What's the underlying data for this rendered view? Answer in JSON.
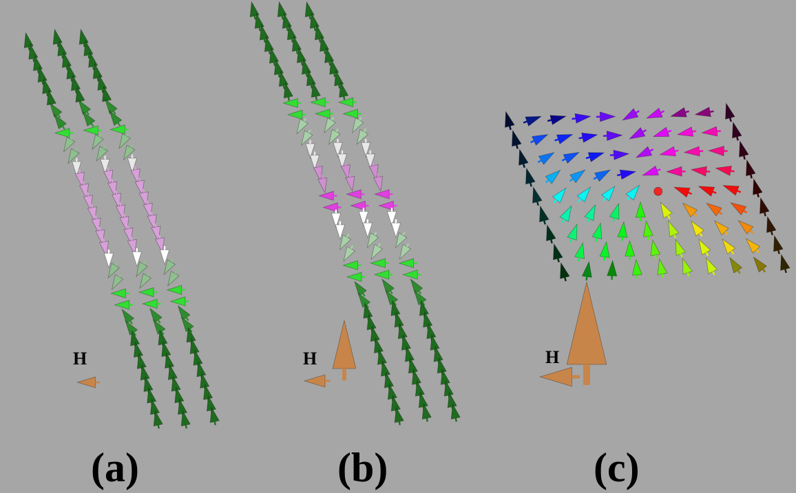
{
  "figure": {
    "background": "#a6a6a6",
    "panels": [
      {
        "id": "a",
        "label": "(a)",
        "field_label": "H",
        "description_colors": [
          "#1f6b1f",
          "#33cc33",
          "#c8e6c8",
          "#ffffff",
          "#d8a0d8"
        ]
      },
      {
        "id": "b",
        "label": "(b)",
        "field_label": "H",
        "description_colors": [
          "#1f6b1f",
          "#33cc33",
          "#c8e6c8",
          "#ffffff",
          "#e060e0"
        ]
      },
      {
        "id": "c",
        "label": "(c)",
        "field_label": "H",
        "description_colors": [
          "#000000",
          "#cccc00",
          "#ff00ff",
          "#00cccc",
          "#0000cc"
        ]
      }
    ],
    "field_arrow_color": "#c8854a"
  }
}
